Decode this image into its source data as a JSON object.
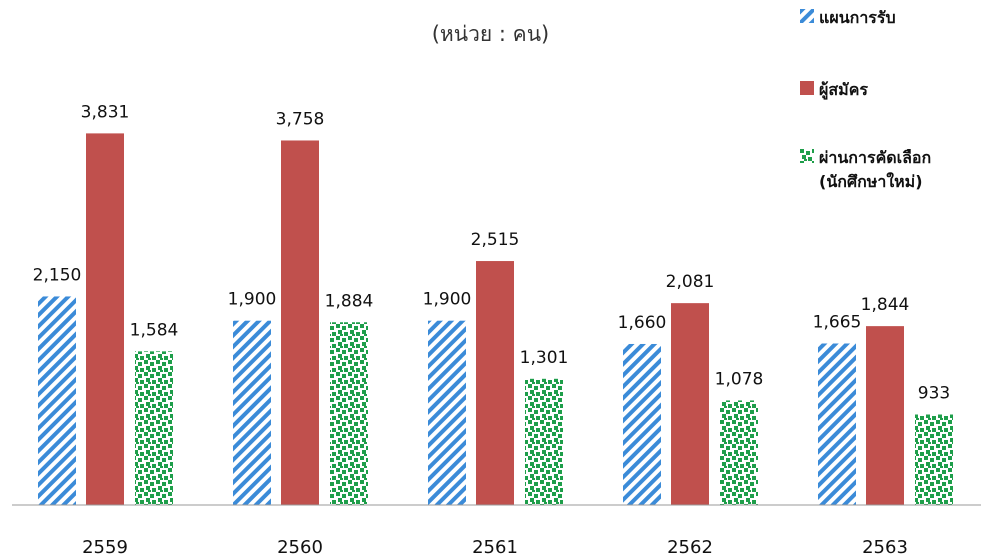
{
  "unit_label": "(หน่วย : คน)",
  "colors": {
    "plan": "#3b8bd8",
    "applicants": "#c0504d",
    "selected": "#1e9e4a"
  },
  "chart_data": {
    "type": "bar",
    "categories": [
      "2559",
      "2560",
      "2561",
      "2562",
      "2563"
    ],
    "series": [
      {
        "name": "แผนการรับ",
        "values": [
          2150,
          1900,
          1900,
          1660,
          1665
        ],
        "labels": [
          "2,150",
          "1,900",
          "1,900",
          "1,660",
          "1,665"
        ]
      },
      {
        "name": "ผู้สมัคร",
        "values": [
          3831,
          3758,
          2515,
          2081,
          1844
        ],
        "labels": [
          "3,831",
          "3,758",
          "2,515",
          "2,081",
          "1,844"
        ]
      },
      {
        "name": "ผ่านการคัดเลือก\n(นักศึกษาใหม่)",
        "values": [
          1584,
          1884,
          1301,
          1078,
          933
        ],
        "labels": [
          "1,584",
          "1,884",
          "1,301",
          "1,078",
          "933"
        ]
      }
    ],
    "ylim": [
      0,
      4200
    ],
    "grid": false,
    "legend": "top-right"
  }
}
